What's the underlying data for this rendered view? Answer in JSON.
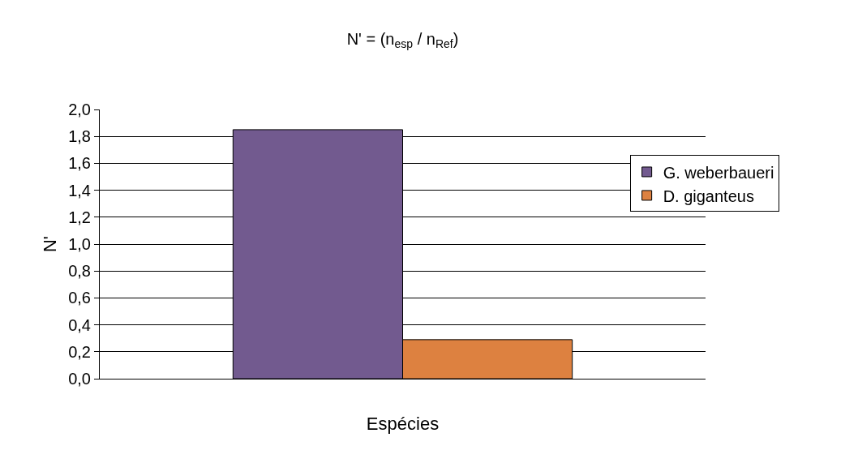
{
  "chart_data": {
    "type": "bar",
    "title": "N' = (n$_{esp}$ / n$_{Ref}$)",
    "xlabel": "Espécies",
    "ylabel": "N'",
    "categories": [
      null
    ],
    "series": [
      {
        "name": "G. weberbaueri",
        "color": "#725a8f",
        "values": [
          1.85
        ]
      },
      {
        "name": "D. giganteus",
        "color": "#dd8140",
        "values": [
          0.29
        ]
      }
    ],
    "ylim": [
      0,
      2
    ],
    "yticks": [
      {
        "value": 0,
        "label": "0,0"
      },
      {
        "value": 0.2,
        "label": "0,2"
      },
      {
        "value": 0.4,
        "label": "0,4"
      },
      {
        "value": 0.6,
        "label": "0,6"
      },
      {
        "value": 0.8,
        "label": "0,8"
      },
      {
        "value": 1,
        "label": "1,0"
      },
      {
        "value": 1.2,
        "label": "1,2"
      },
      {
        "value": 1.4,
        "label": "1,4"
      },
      {
        "value": 1.6,
        "label": "1,6"
      },
      {
        "value": 1.8,
        "label": "1,8"
      },
      {
        "value": 2,
        "label": "2,0"
      }
    ],
    "grid": "y",
    "legend": "right"
  }
}
